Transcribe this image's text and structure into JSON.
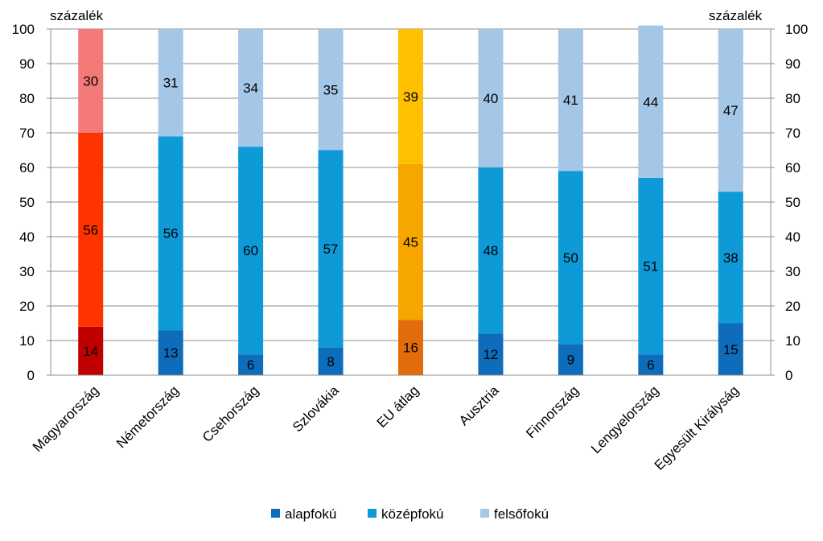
{
  "chart_data": {
    "type": "bar",
    "stacked": true,
    "categories": [
      "Magyarország",
      "Németország",
      "Csehország",
      "Szlovákia",
      "EU átlag",
      "Ausztria",
      "Finnország",
      "Lengyelország",
      "Egyesült Királyság"
    ],
    "series": [
      {
        "name": "alapfokú",
        "values": [
          14,
          13,
          6,
          8,
          16,
          12,
          9,
          6,
          15
        ],
        "color": "#0E6DBB"
      },
      {
        "name": "középfokú",
        "values": [
          56,
          56,
          60,
          57,
          45,
          48,
          50,
          51,
          38
        ],
        "color": "#0E9AD7"
      },
      {
        "name": "felsőfokú",
        "values": [
          30,
          31,
          34,
          35,
          39,
          40,
          41,
          44,
          47
        ],
        "color": "#A4C6E7"
      }
    ],
    "highlight_colors": {
      "Magyarország": [
        "#C00000",
        "#FF3300",
        "#F47A78"
      ],
      "EU átlag": [
        "#E36C0A",
        "#F7A600",
        "#FFC000"
      ]
    },
    "ylabel_left": "százalék",
    "ylabel_right": "százalék",
    "ylim": [
      0,
      100
    ],
    "yticks": [
      "0",
      "10",
      "20",
      "30",
      "40",
      "50",
      "60",
      "70",
      "80",
      "90",
      "100"
    ],
    "grid": true,
    "legend_position": "bottom"
  }
}
